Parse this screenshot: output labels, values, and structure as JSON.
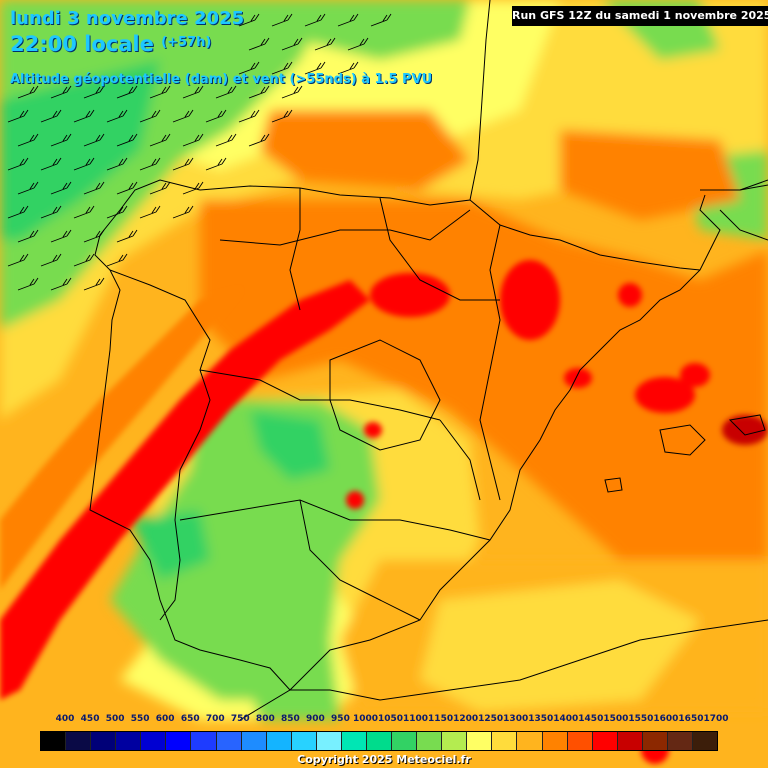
{
  "header": {
    "date_line": "lundi 3 novembre 2025",
    "time_line": "22:00 locale",
    "lead_time": "(+57h)",
    "parameter": "Altitude géopotentielle (dam) et vent (>55nds) à 1.5 PVU",
    "run_info": "Run GFS 12Z du samedi 1 novembre 2025"
  },
  "legend": {
    "labels": [
      "400",
      "450",
      "500",
      "550",
      "600",
      "650",
      "700",
      "750",
      "800",
      "850",
      "900",
      "950",
      "1000",
      "1050",
      "1100",
      "1150",
      "1200",
      "1250",
      "1300",
      "1350",
      "1400",
      "1450",
      "1500",
      "1550",
      "1600",
      "1650",
      "1700"
    ],
    "colors": [
      "#000000",
      "#0a0a46",
      "#000078",
      "#0000a0",
      "#0000d2",
      "#0000ff",
      "#1e3cff",
      "#2864ff",
      "#1e8cff",
      "#14b4ff",
      "#28d2ff",
      "#78f0ff",
      "#00e6b4",
      "#00dc8c",
      "#32d264",
      "#78dc50",
      "#b4ec50",
      "#ffff64",
      "#ffdc3c",
      "#ffb41e",
      "#ff8200",
      "#ff5000",
      "#ff0000",
      "#c80000",
      "#8c2800",
      "#642814",
      "#3c1e0a"
    ]
  },
  "copyright": "Copyright 2025 Meteociel.fr",
  "map_colors": {
    "light_green": "#78dc50",
    "green": "#32d264",
    "yellow": "#ffff64",
    "light_orange": "#ffdc3c",
    "orange": "#ffb41e",
    "dark_orange": "#ff8200",
    "red": "#ff0000",
    "dark_red": "#c80000",
    "border": "#000000"
  }
}
